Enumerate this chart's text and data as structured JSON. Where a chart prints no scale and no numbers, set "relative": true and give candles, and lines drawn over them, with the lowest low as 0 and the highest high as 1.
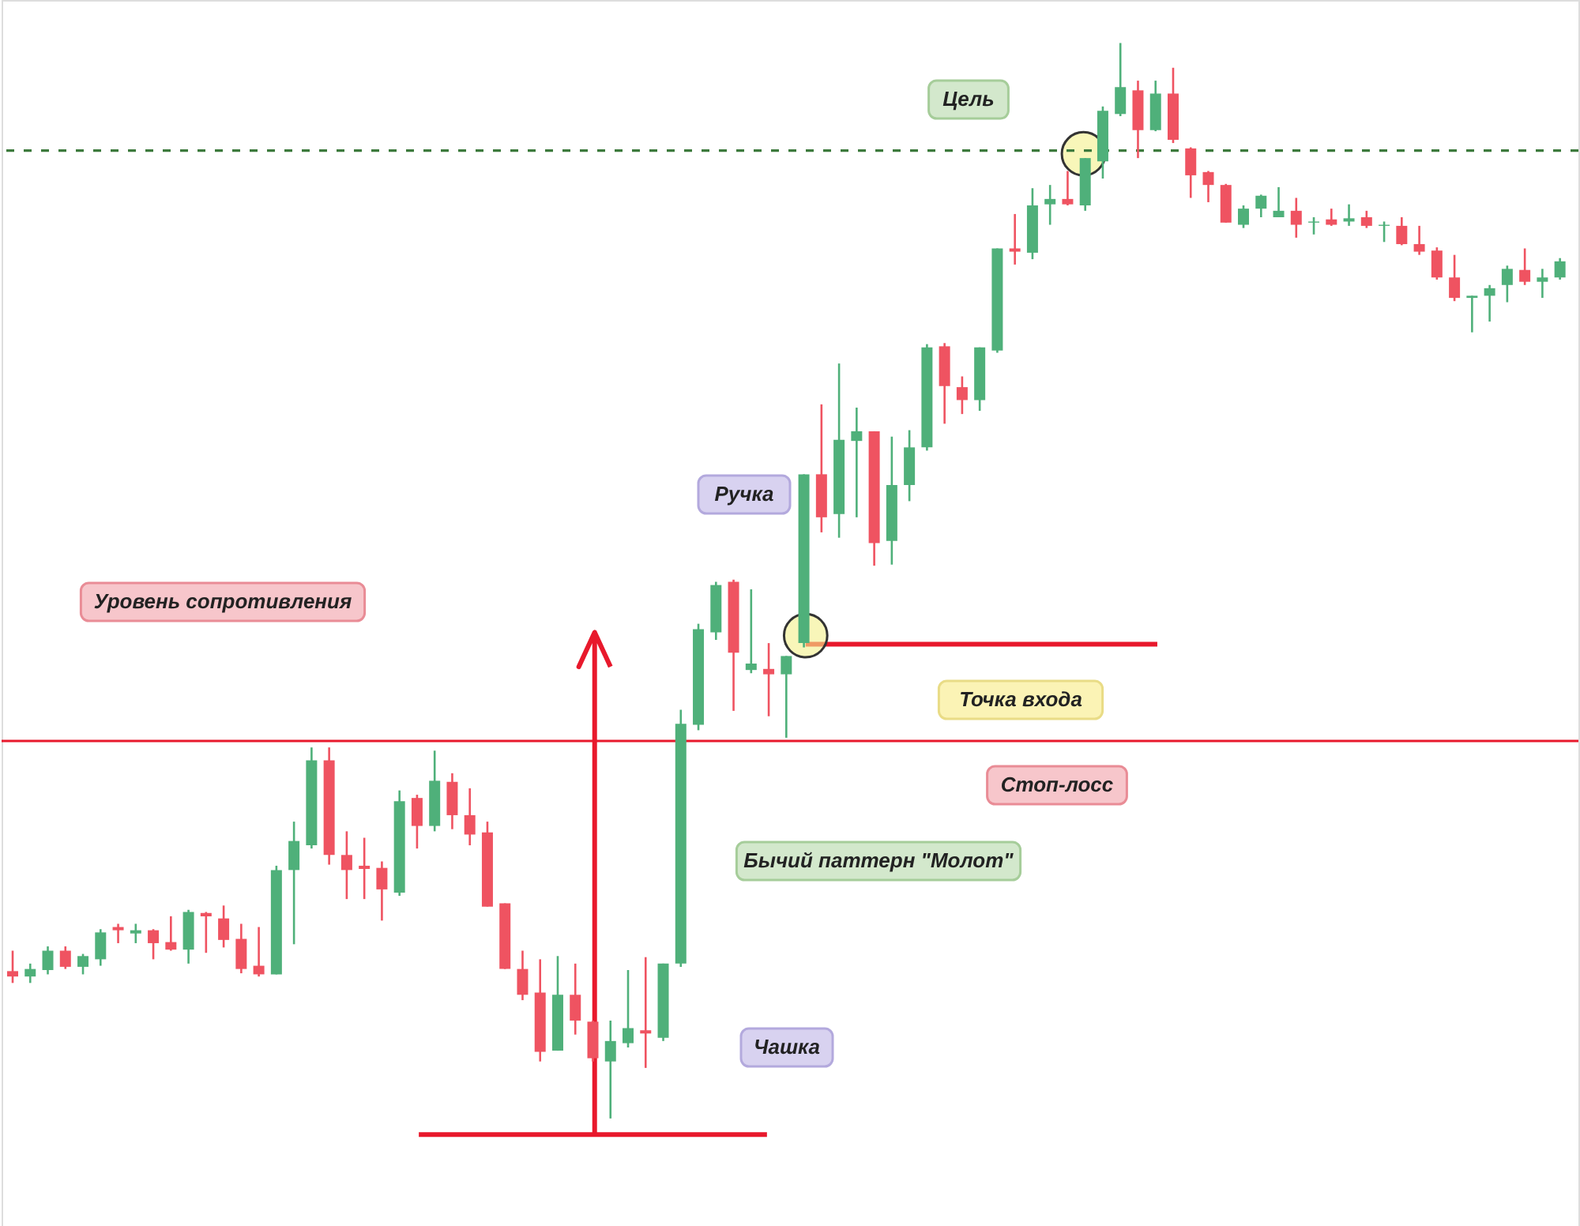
{
  "chart_data": {
    "type": "candlestick",
    "relative": true,
    "categories": [
      null,
      null,
      null,
      null,
      null,
      null,
      null,
      null,
      null,
      null,
      null,
      null,
      null,
      null,
      null,
      null,
      null,
      null,
      null,
      null,
      null,
      null,
      null,
      null,
      null,
      null,
      null,
      null,
      null,
      null,
      null,
      null,
      null,
      null,
      null,
      null,
      null,
      null,
      null,
      null,
      null,
      null,
      null,
      null,
      null,
      null,
      null,
      null,
      null,
      null,
      null,
      null,
      null,
      null,
      null,
      null,
      null,
      null,
      null,
      null,
      null,
      null,
      null,
      null,
      null,
      null,
      null,
      null,
      null,
      null,
      null,
      null,
      null,
      null,
      null,
      null,
      null,
      null,
      null,
      null,
      null,
      null,
      null,
      null,
      null,
      null,
      null,
      null,
      null
    ],
    "ohlc": [
      [
        0.137,
        0.156,
        0.126,
        0.132
      ],
      [
        0.132,
        0.144,
        0.126,
        0.139
      ],
      [
        0.138,
        0.16,
        0.134,
        0.156
      ],
      [
        0.156,
        0.16,
        0.139,
        0.141
      ],
      [
        0.141,
        0.153,
        0.134,
        0.151
      ],
      [
        0.148,
        0.176,
        0.142,
        0.173
      ],
      [
        0.178,
        0.181,
        0.163,
        0.175
      ],
      [
        0.172,
        0.181,
        0.163,
        0.175
      ],
      [
        0.175,
        0.176,
        0.148,
        0.163
      ],
      [
        0.164,
        0.188,
        0.156,
        0.157
      ],
      [
        0.157,
        0.194,
        0.144,
        0.192
      ],
      [
        0.191,
        0.192,
        0.154,
        0.188
      ],
      [
        0.186,
        0.198,
        0.159,
        0.166
      ],
      [
        0.167,
        0.181,
        0.135,
        0.139
      ],
      [
        0.142,
        0.178,
        0.132,
        0.134
      ],
      [
        0.134,
        0.235,
        0.134,
        0.231
      ],
      [
        0.231,
        0.276,
        0.162,
        0.258
      ],
      [
        0.254,
        0.345,
        0.251,
        0.333
      ],
      [
        0.333,
        0.345,
        0.236,
        0.245
      ],
      [
        0.245,
        0.267,
        0.204,
        0.231
      ],
      [
        0.235,
        0.261,
        0.204,
        0.232
      ],
      [
        0.233,
        0.239,
        0.184,
        0.213
      ],
      [
        0.21,
        0.305,
        0.207,
        0.295
      ],
      [
        0.298,
        0.301,
        0.251,
        0.272
      ],
      [
        0.272,
        0.342,
        0.267,
        0.314
      ],
      [
        0.313,
        0.321,
        0.269,
        0.282
      ],
      [
        0.282,
        0.307,
        0.254,
        0.264
      ],
      [
        0.266,
        0.276,
        0.197,
        0.197
      ],
      [
        0.2,
        0.2,
        0.139,
        0.139
      ],
      [
        0.139,
        0.156,
        0.11,
        0.115
      ],
      [
        0.117,
        0.148,
        0.053,
        0.062
      ],
      [
        0.063,
        0.151,
        0.063,
        0.115
      ],
      [
        0.115,
        0.144,
        0.078,
        0.091
      ],
      [
        0.09,
        0.091,
        0.053,
        0.056
      ],
      [
        0.053,
        0.091,
        0.0,
        0.072
      ],
      [
        0.07,
        0.138,
        0.066,
        0.084
      ],
      [
        0.082,
        0.15,
        0.047,
        0.079
      ],
      [
        0.075,
        0.144,
        0.072,
        0.144
      ],
      [
        0.144,
        0.38,
        0.141,
        0.367
      ],
      [
        0.366,
        0.46,
        0.361,
        0.455
      ],
      [
        0.452,
        0.499,
        0.445,
        0.496
      ],
      [
        0.499,
        0.501,
        0.379,
        0.433
      ],
      [
        0.417,
        0.492,
        0.414,
        0.423
      ],
      [
        0.418,
        0.442,
        0.374,
        0.413
      ],
      [
        0.413,
        0.43,
        0.354,
        0.43
      ],
      [
        0.442,
        0.599,
        0.438,
        0.599
      ],
      [
        0.599,
        0.664,
        0.545,
        0.559
      ],
      [
        0.562,
        0.702,
        0.54,
        0.631
      ],
      [
        0.63,
        0.661,
        0.559,
        0.639
      ],
      [
        0.639,
        0.639,
        0.514,
        0.535
      ],
      [
        0.537,
        0.634,
        0.515,
        0.589
      ],
      [
        0.589,
        0.64,
        0.574,
        0.624
      ],
      [
        0.624,
        0.72,
        0.621,
        0.717
      ],
      [
        0.718,
        0.721,
        0.646,
        0.681
      ],
      [
        0.68,
        0.69,
        0.655,
        0.668
      ],
      [
        0.668,
        0.717,
        0.658,
        0.717
      ],
      [
        0.714,
        0.809,
        0.712,
        0.809
      ],
      [
        0.809,
        0.841,
        0.794,
        0.806
      ],
      [
        0.805,
        0.865,
        0.799,
        0.849
      ],
      [
        0.85,
        0.868,
        0.831,
        0.855
      ],
      [
        0.855,
        0.881,
        0.849,
        0.85
      ],
      [
        0.849,
        0.893,
        0.844,
        0.893
      ],
      [
        0.89,
        0.941,
        0.874,
        0.937
      ],
      [
        0.934,
        1.0,
        0.932,
        0.959
      ],
      [
        0.956,
        0.965,
        0.893,
        0.919
      ],
      [
        0.919,
        0.965,
        0.918,
        0.953
      ],
      [
        0.953,
        0.977,
        0.907,
        0.91
      ],
      [
        0.902,
        0.903,
        0.856,
        0.877
      ],
      [
        0.88,
        0.881,
        0.852,
        0.868
      ],
      [
        0.868,
        0.869,
        0.833,
        0.833
      ],
      [
        0.831,
        0.849,
        0.828,
        0.846
      ],
      [
        0.846,
        0.859,
        0.838,
        0.858
      ],
      [
        0.838,
        0.866,
        0.838,
        0.844
      ],
      [
        0.844,
        0.856,
        0.819,
        0.831
      ],
      [
        0.833,
        0.838,
        0.822,
        0.834
      ],
      [
        0.836,
        0.846,
        0.83,
        0.831
      ],
      [
        0.834,
        0.85,
        0.83,
        0.837
      ],
      [
        0.838,
        0.844,
        0.828,
        0.83
      ],
      [
        0.83,
        0.834,
        0.815,
        0.831
      ],
      [
        0.83,
        0.838,
        0.812,
        0.813
      ],
      [
        0.813,
        0.83,
        0.803,
        0.806
      ],
      [
        0.807,
        0.81,
        0.78,
        0.782
      ],
      [
        0.782,
        0.803,
        0.76,
        0.763
      ],
      [
        0.763,
        0.765,
        0.731,
        0.765
      ],
      [
        0.765,
        0.775,
        0.741,
        0.772
      ],
      [
        0.775,
        0.793,
        0.759,
        0.79
      ],
      [
        0.789,
        0.809,
        0.775,
        0.778
      ],
      [
        0.778,
        0.79,
        0.763,
        0.782
      ],
      [
        0.782,
        0.8,
        0.78,
        0.797
      ]
    ],
    "colors": [
      "#ef5361",
      "#4fb07a",
      "#4fb07a",
      "#ef5361",
      "#4fb07a",
      "#4fb07a",
      "#ef5361",
      "#4fb07a",
      "#ef5361",
      "#ef5361",
      "#4fb07a",
      "#ef5361",
      "#ef5361",
      "#ef5361",
      "#ef5361",
      "#4fb07a",
      "#4fb07a",
      "#4fb07a",
      "#ef5361",
      "#ef5361",
      "#ef5361",
      "#ef5361",
      "#4fb07a",
      "#ef5361",
      "#4fb07a",
      "#ef5361",
      "#ef5361",
      "#ef5361",
      "#ef5361",
      "#ef5361",
      "#ef5361",
      "#4fb07a",
      "#ef5361",
      "#ef5361",
      "#4fb07a",
      "#4fb07a",
      "#ef5361",
      "#4fb07a",
      "#4fb07a",
      "#4fb07a",
      "#4fb07a",
      "#ef5361",
      "#4fb07a",
      "#ef5361",
      "#4fb07a",
      "#4fb07a",
      "#ef5361",
      "#4fb07a",
      "#4fb07a",
      "#ef5361",
      "#4fb07a",
      "#4fb07a",
      "#4fb07a",
      "#ef5361",
      "#ef5361",
      "#4fb07a",
      "#4fb07a",
      "#ef5361",
      "#4fb07a",
      "#4fb07a",
      "#ef5361",
      "#4fb07a",
      "#4fb07a",
      "#4fb07a",
      "#ef5361",
      "#4fb07a",
      "#ef5361",
      "#ef5361",
      "#ef5361",
      "#ef5361",
      "#4fb07a",
      "#4fb07a",
      "#4fb07a",
      "#ef5361",
      "#4fb07a",
      "#ef5361",
      "#4fb07a",
      "#ef5361",
      "#4fb07a",
      "#ef5361",
      "#ef5361",
      "#ef5361",
      "#ef5361",
      "#4fb07a",
      "#4fb07a",
      "#4fb07a",
      "#ef5361",
      "#4fb07a",
      "#4fb07a"
    ],
    "ref_lines": [
      {
        "axis": "y",
        "value": 0.351,
        "color": "#e8192c",
        "line_style": "solid"
      },
      {
        "axis": "y",
        "value": 0.9,
        "color": "#3d7a3d",
        "line_style": "dashed"
      }
    ],
    "annotations": [
      "Уровень сопротивления",
      "Ручка",
      "Точка входа",
      "Стоп-лосс",
      "Бычий паттерн \"Молот\"",
      "Чашка",
      "Цель"
    ]
  }
}
